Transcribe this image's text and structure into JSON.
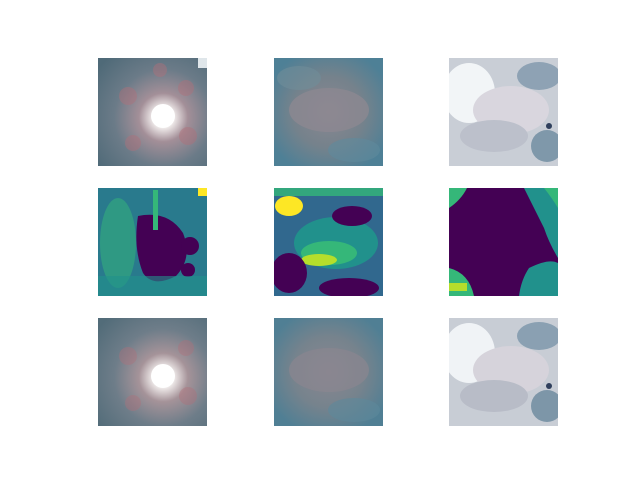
{
  "figure": {
    "grid": {
      "rows": 3,
      "cols": 3
    },
    "rows": [
      {
        "role": "input",
        "style": "photo"
      },
      {
        "role": "mask",
        "style": "viridis-heatmap"
      },
      {
        "role": "reconstruction",
        "style": "photo"
      }
    ],
    "columns": [
      {
        "subject": "sun-glare-sky"
      },
      {
        "subject": "grey-cloud-blue-sky"
      },
      {
        "subject": "white-clouds-bright-sky"
      }
    ],
    "colors": {
      "viridis_dark": "#440154",
      "viridis_blue": "#31688e",
      "viridis_teal": "#21918c",
      "viridis_green": "#35b779",
      "viridis_yellow": "#fde725",
      "sky_blue": "#4e7f96",
      "cloud_grey": "#8a8a92",
      "cloud_white": "#e6e8ee"
    }
  }
}
